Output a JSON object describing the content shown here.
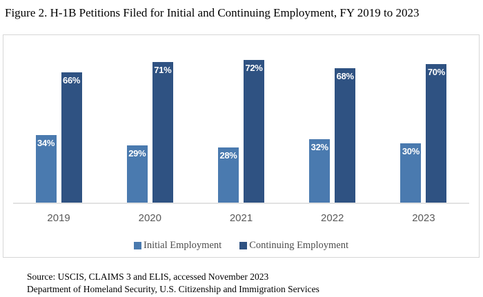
{
  "title": "Figure 2. H-1B Petitions Filed for Initial and Continuing Employment, FY 2019 to 2023",
  "chart_data": {
    "type": "bar",
    "categories": [
      "2019",
      "2020",
      "2021",
      "2022",
      "2023"
    ],
    "series": [
      {
        "name": "Initial Employment",
        "color": "#4a7aaf",
        "values": [
          34,
          29,
          28,
          32,
          30
        ],
        "labels": [
          "34%",
          "29%",
          "28%",
          "32%",
          "30%"
        ]
      },
      {
        "name": "Continuing Employment",
        "color": "#2f5282",
        "values": [
          66,
          71,
          72,
          68,
          70
        ],
        "labels": [
          "66%",
          "71%",
          "72%",
          "68%",
          "70%"
        ]
      }
    ],
    "ylim": [
      0,
      80
    ],
    "xlabel": "",
    "ylabel": "",
    "grid": false,
    "y_axis_visible": false,
    "value_labels": "inside-top",
    "legend_position": "bottom"
  },
  "footer": {
    "source_line1": "Source: USCIS, CLAIMS 3 and ELIS, accessed November 2023",
    "source_line2": "Department of Homeland Security, U.S. Citizenship and Immigration Services"
  }
}
